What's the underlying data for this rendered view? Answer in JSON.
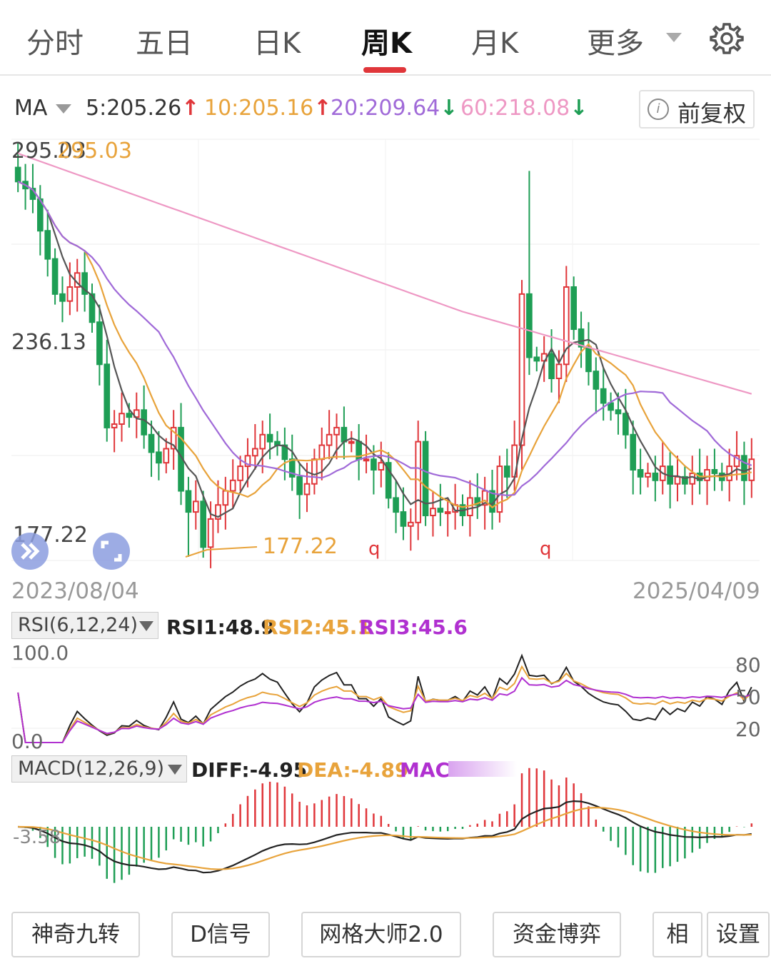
{
  "tabs": [
    {
      "label": "分时"
    },
    {
      "label": "五日"
    },
    {
      "label": "日K"
    },
    {
      "label": "周K",
      "active": true
    },
    {
      "label": "月K"
    },
    {
      "label": "更多"
    }
  ],
  "icons": {
    "settings": "gear-icon",
    "dropdown": "triangle-down-icon",
    "info": "info-icon",
    "expand": "double-chevron-right-icon",
    "fullscreen": "fullscreen-icon"
  },
  "ma_bar": {
    "label": "MA",
    "ma5": "5:205.26",
    "ma10": "10:205.16",
    "ma20": "20:209.64",
    "ma60": "60:218.08",
    "arrow_up": "↑",
    "arrow_down": "↓"
  },
  "adjust_button": {
    "label": "前复权"
  },
  "colors": {
    "up": "#e0363a",
    "down": "#1e9e55",
    "ma5": "#555555",
    "ma10": "#e8a33b",
    "ma20": "#a06ad8",
    "ma60": "#ee98c4",
    "accent": "#e0363a"
  },
  "price_axis": {
    "top": "295.03",
    "mid": "236.13",
    "bottom": "177.22"
  },
  "annotations": {
    "high": "295.03",
    "low": "177.22",
    "marker1": "q",
    "marker2": "q"
  },
  "dates": {
    "start": "2023/08/04",
    "end": "2025/04/09"
  },
  "rsi": {
    "selector": "RSI(6,12,24)",
    "rsi1": "RSI1:48.9",
    "rsi2": "RSI2:45.1",
    "rsi3": "RSI3:45.6",
    "axis_top": "100.0",
    "axis_bottom": "0.0",
    "ticks": [
      "80",
      "50",
      "20"
    ]
  },
  "macd": {
    "selector": "MACD(12,26,9)",
    "diff": "DIFF:-4.95",
    "dea": "DEA:-4.89",
    "macd": "MACD",
    "axis_label": "-3.58"
  },
  "bottom_buttons": [
    "神奇九转",
    "D信号",
    "网格大师2.0",
    "资金博弈",
    "相",
    "设置"
  ],
  "chart_data": {
    "type": "candlestick",
    "period": "weekly",
    "x_range": [
      "2023/08/04",
      "2025/04/09"
    ],
    "y_range": [
      177.22,
      295.03
    ],
    "high": 295.03,
    "low": 177.22,
    "close_series": [
      284,
      282,
      279,
      270,
      262,
      252,
      250,
      254,
      258,
      252,
      244,
      232,
      214,
      215,
      218,
      217,
      219,
      212,
      207,
      204,
      208,
      214,
      196,
      190,
      193,
      180,
      188,
      192,
      196,
      199,
      203,
      206,
      208,
      212,
      210,
      209,
      205,
      200,
      195,
      198,
      205,
      209,
      212,
      214,
      210,
      210,
      205,
      205,
      202,
      204,
      194,
      190,
      186,
      187,
      210,
      189,
      191,
      190,
      190,
      192,
      189,
      194,
      192,
      196,
      190,
      203,
      200,
      209,
      252,
      234,
      233,
      235,
      228,
      232,
      254,
      242,
      237,
      230,
      225,
      221,
      219,
      218,
      212,
      202,
      200,
      201,
      199,
      203,
      198,
      200,
      198,
      201,
      199,
      202,
      201,
      199,
      203,
      206,
      199,
      205
    ],
    "ma_lines": [
      {
        "name": "MA5",
        "value": 205.26
      },
      {
        "name": "MA10",
        "value": 205.16
      },
      {
        "name": "MA20",
        "value": 209.64
      },
      {
        "name": "MA60",
        "value": 218.08
      }
    ],
    "rsi": {
      "ylim": [
        0,
        100
      ],
      "ticks": [
        20,
        50,
        80
      ],
      "rsi1": 48.9,
      "rsi2": 45.1,
      "rsi3": 45.6
    },
    "macd": {
      "diff": -4.95,
      "dea": -4.89
    }
  }
}
